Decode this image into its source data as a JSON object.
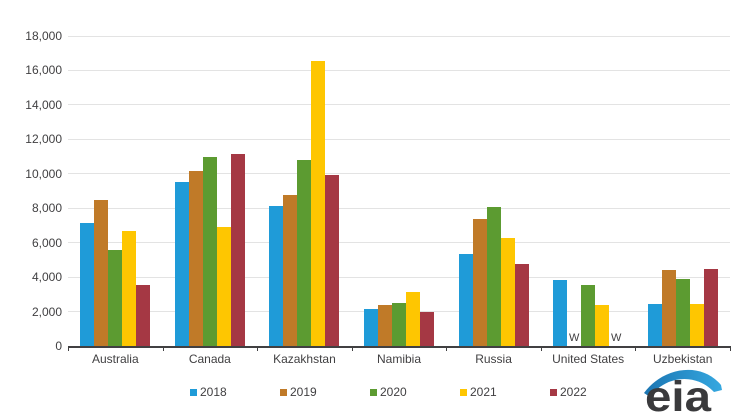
{
  "chart_data": {
    "type": "bar",
    "title": "",
    "categories": [
      "Australia",
      "Canada",
      "Kazakhstan",
      "Namibia",
      "Russia",
      "United States",
      "Uzbekistan"
    ],
    "series": [
      {
        "name": "2018",
        "color": "#1F9BD8",
        "values": [
          7150,
          9550,
          8150,
          2150,
          5350,
          3850,
          2450
        ]
      },
      {
        "name": "2019",
        "color": "#C07A28",
        "values": [
          8500,
          10150,
          8750,
          2400,
          7350,
          "W",
          4400
        ]
      },
      {
        "name": "2020",
        "color": "#5C9B31",
        "values": [
          5600,
          10950,
          10800,
          2500,
          8050,
          3550,
          3900
        ]
      },
      {
        "name": "2021",
        "color": "#FEC601",
        "values": [
          6700,
          6900,
          16550,
          3150,
          6250,
          2400,
          2450
        ]
      },
      {
        "name": "2022",
        "color": "#A53844",
        "values": [
          3550,
          11150,
          9950,
          1950,
          4750,
          "W",
          4450
        ]
      }
    ],
    "withheld_marker": "W",
    "ylim": [
      0,
      18000
    ],
    "yticks": [
      {
        "value": 0,
        "label": "0"
      },
      {
        "value": 2000,
        "label": "2,000"
      },
      {
        "value": 4000,
        "label": "4,000"
      },
      {
        "value": 6000,
        "label": "6,000"
      },
      {
        "value": 8000,
        "label": "8,000"
      },
      {
        "value": 10000,
        "label": "10,000"
      },
      {
        "value": 12000,
        "label": "12,000"
      },
      {
        "value": 14000,
        "label": "14,000"
      },
      {
        "value": 16000,
        "label": "16,000"
      },
      {
        "value": 18000,
        "label": "18,000"
      }
    ],
    "grid": true,
    "legend_position": "bottom"
  },
  "branding": {
    "logo_text": "eia",
    "logo_swoosh_color_dark": "#1B75B2",
    "logo_swoosh_color_light": "#35A8E0",
    "logo_text_color": "#3A3A3C"
  }
}
